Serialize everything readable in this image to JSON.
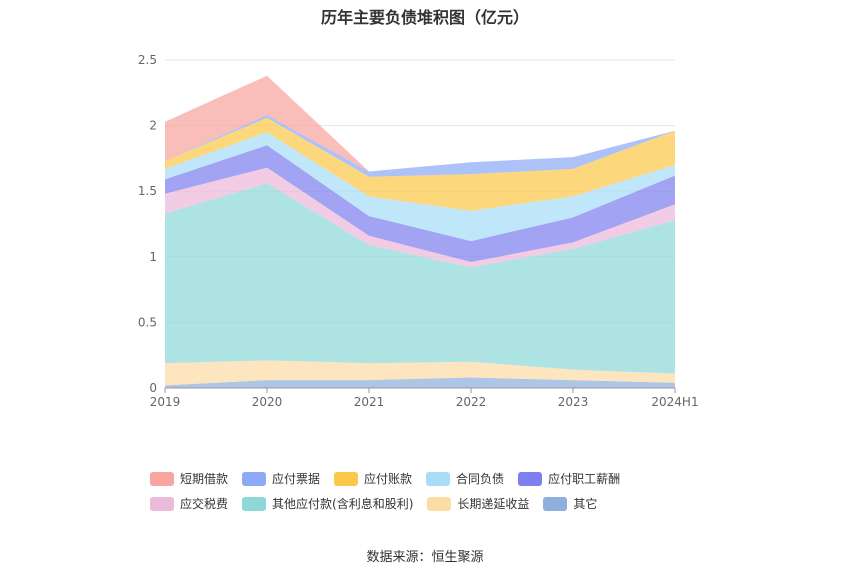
{
  "chart_data": {
    "type": "area",
    "stacked": true,
    "title": "历年主要负债堆积图（亿元）",
    "categories": [
      "2019",
      "2020",
      "2021",
      "2022",
      "2023",
      "2024H1"
    ],
    "y_ticks": [
      "0",
      "0.5",
      "1",
      "1.5",
      "2",
      "2.5"
    ],
    "ylim": [
      0,
      2.5
    ],
    "grid": true,
    "legend_position": "bottom",
    "series": [
      {
        "name": "其它",
        "color": "#8fb0dc",
        "values": [
          0.02,
          0.06,
          0.06,
          0.08,
          0.06,
          0.04
        ]
      },
      {
        "name": "长期递延收益",
        "color": "#fcdda6",
        "values": [
          0.17,
          0.15,
          0.13,
          0.12,
          0.08,
          0.07
        ]
      },
      {
        "name": "其他应付款(含利息和股利)",
        "color": "#8ed8d8",
        "values": [
          1.14,
          1.35,
          0.9,
          0.72,
          0.92,
          1.17
        ]
      },
      {
        "name": "应交税费",
        "color": "#ebb9d9",
        "values": [
          0.15,
          0.12,
          0.07,
          0.04,
          0.05,
          0.12
        ]
      },
      {
        "name": "应付职工薪酬",
        "color": "#7f80f0",
        "values": [
          0.11,
          0.17,
          0.15,
          0.16,
          0.19,
          0.22
        ]
      },
      {
        "name": "合同负债",
        "color": "#a8dcf7",
        "values": [
          0.08,
          0.1,
          0.15,
          0.23,
          0.16,
          0.08
        ]
      },
      {
        "name": "应付账款",
        "color": "#fcc84a",
        "values": [
          0.06,
          0.11,
          0.15,
          0.28,
          0.21,
          0.26
        ]
      },
      {
        "name": "应付票据",
        "color": "#8eaaf7",
        "values": [
          0.0,
          0.02,
          0.04,
          0.09,
          0.09,
          0.0
        ]
      },
      {
        "name": "短期借款",
        "color": "#f7a59e",
        "values": [
          0.3,
          0.3,
          0.0,
          0.0,
          0.0,
          0.0
        ]
      }
    ],
    "legend_order": [
      "短期借款",
      "应付票据",
      "应付账款",
      "合同负债",
      "应付职工薪酬",
      "应交税费",
      "其他应付款(含利息和股利)",
      "长期递延收益",
      "其它"
    ]
  },
  "source_text": "数据来源：恒生聚源"
}
